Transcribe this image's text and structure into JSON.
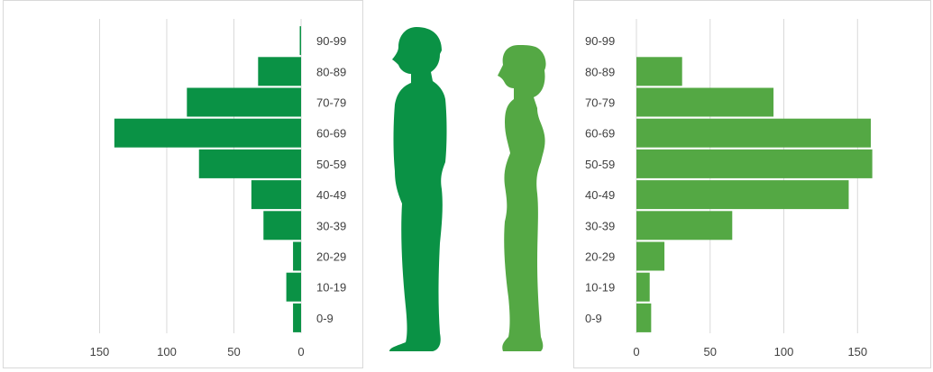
{
  "colors": {
    "male": "#0a9245",
    "female": "#54a844",
    "grid": "#d9d9d9",
    "text": "#404040"
  },
  "chart_data": [
    {
      "type": "bar",
      "orientation": "horizontal",
      "x_direction": "reversed",
      "categories": [
        "90-99",
        "80-89",
        "70-79",
        "60-69",
        "50-59",
        "40-49",
        "30-39",
        "20-29",
        "10-19",
        "0-9"
      ],
      "values": [
        1,
        32,
        85,
        139,
        76,
        37,
        28,
        6,
        11,
        6
      ],
      "xlim": [
        0,
        155
      ],
      "xticks": [
        150,
        100,
        50,
        0
      ],
      "grid": "vertical",
      "color": "#0a9245"
    },
    {
      "type": "bar",
      "orientation": "horizontal",
      "categories": [
        "90-99",
        "80-89",
        "70-79",
        "60-69",
        "50-59",
        "40-49",
        "30-39",
        "20-29",
        "10-19",
        "0-9"
      ],
      "values": [
        0,
        31,
        93,
        159,
        160,
        144,
        65,
        19,
        9,
        10
      ],
      "xlim": [
        0,
        170
      ],
      "xticks": [
        0,
        50,
        100,
        150
      ],
      "grid": "vertical",
      "color": "#54a844"
    }
  ],
  "figures": {
    "male_icon": "male-silhouette-icon",
    "female_icon": "female-silhouette-icon"
  }
}
